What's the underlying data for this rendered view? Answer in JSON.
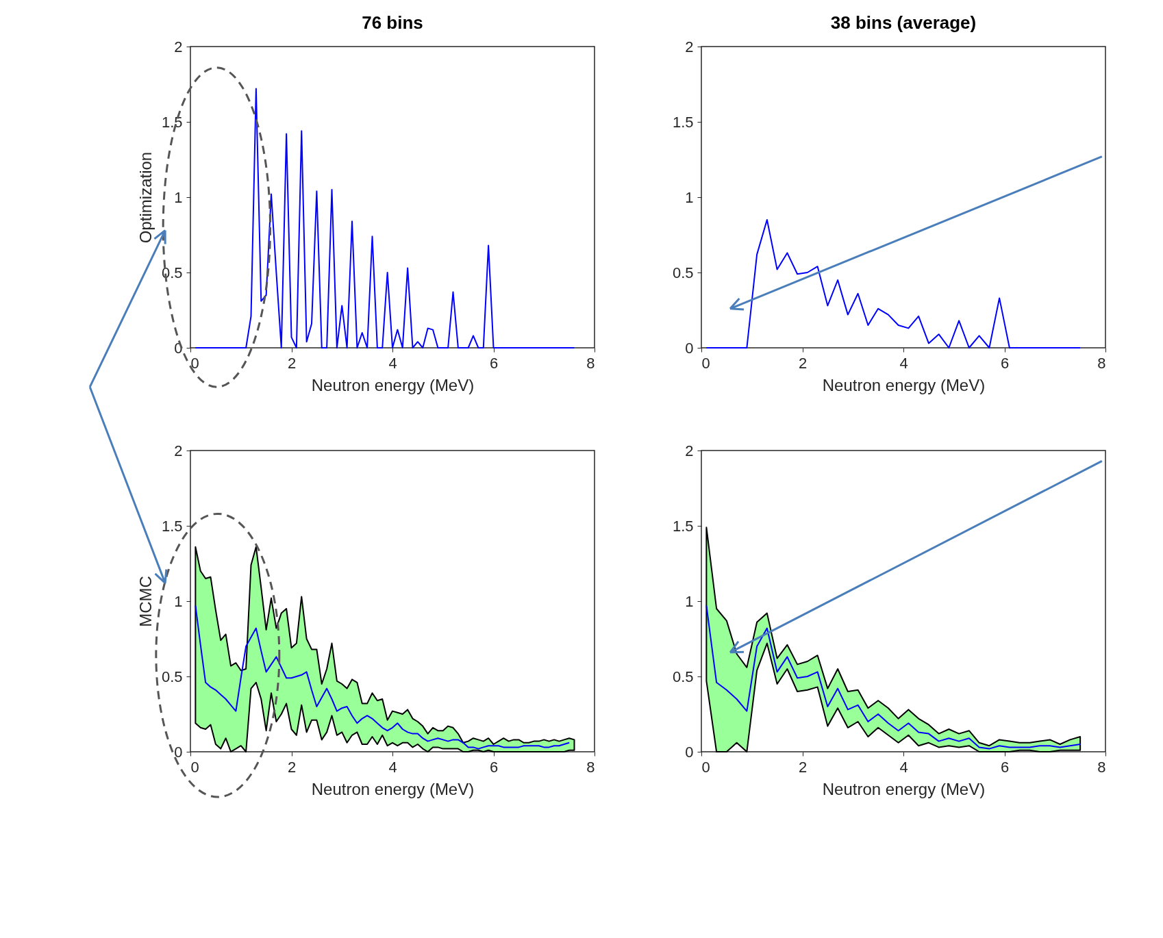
{
  "chart_data": [
    {
      "type": "line",
      "title": "76 bins",
      "xlabel": "Neutron energy (MeV)",
      "ylabel": "Optimization",
      "x": [
        0.1,
        0.2,
        0.3,
        0.4,
        0.5,
        0.6,
        0.7,
        0.8,
        0.9,
        1.0,
        1.1,
        1.2,
        1.3,
        1.4,
        1.5,
        1.6,
        1.7,
        1.8,
        1.9,
        2.0,
        2.1,
        2.2,
        2.3,
        2.4,
        2.5,
        2.6,
        2.7,
        2.8,
        2.9,
        3.0,
        3.1,
        3.2,
        3.3,
        3.4,
        3.5,
        3.6,
        3.7,
        3.8,
        3.9,
        4.0,
        4.1,
        4.2,
        4.3,
        4.4,
        4.5,
        4.6,
        4.7,
        4.8,
        4.9,
        5.0,
        5.1,
        5.2,
        5.3,
        5.4,
        5.5,
        5.6,
        5.7,
        5.8,
        5.9,
        6.0,
        6.1,
        6.2,
        6.3,
        6.4,
        6.5,
        6.6,
        6.7,
        6.8,
        6.9,
        7.0,
        7.1,
        7.2,
        7.3,
        7.4,
        7.5,
        7.6
      ],
      "series": [
        {
          "color": "#0000ff",
          "values": [
            0,
            0,
            0,
            0,
            0,
            0,
            0,
            0,
            0,
            0,
            0,
            0.21,
            1.72,
            0.31,
            0.35,
            1.02,
            0.5,
            0,
            1.42,
            0.07,
            0,
            1.44,
            0.04,
            0.16,
            1.04,
            0,
            0,
            1.05,
            0,
            0.28,
            0,
            0.84,
            0,
            0.1,
            0,
            0.74,
            0,
            0,
            0.5,
            0,
            0.12,
            0,
            0.53,
            0,
            0.04,
            0,
            0.13,
            0.12,
            0,
            0,
            0,
            0.37,
            0,
            0,
            0,
            0.08,
            0,
            0,
            0.68,
            0,
            0,
            0,
            0,
            0,
            0,
            0,
            0,
            0,
            0,
            0,
            0,
            0,
            0,
            0,
            0,
            0
          ]
        }
      ],
      "xlim": [
        0,
        8
      ],
      "xticks": [
        0,
        2,
        4,
        6,
        8
      ],
      "ylim": [
        0,
        2
      ],
      "yticks": [
        0,
        0.5,
        1,
        1.5,
        2
      ]
    },
    {
      "type": "line",
      "title": "38 bins (average)",
      "xlabel": "Neutron energy (MeV)",
      "x": [
        0.1,
        0.3,
        0.5,
        0.7,
        0.9,
        1.1,
        1.3,
        1.5,
        1.7,
        1.9,
        2.1,
        2.3,
        2.5,
        2.7,
        2.9,
        3.1,
        3.3,
        3.5,
        3.7,
        3.9,
        4.1,
        4.3,
        4.5,
        4.7,
        4.9,
        5.1,
        5.3,
        5.5,
        5.7,
        5.9,
        6.1,
        6.3,
        6.5,
        6.7,
        6.9,
        7.1,
        7.3,
        7.5
      ],
      "series": [
        {
          "color": "#0000ff",
          "values": [
            0,
            0,
            0,
            0,
            0,
            0.62,
            0.85,
            0.52,
            0.63,
            0.49,
            0.5,
            0.54,
            0.28,
            0.45,
            0.22,
            0.36,
            0.15,
            0.26,
            0.22,
            0.15,
            0.13,
            0.21,
            0.03,
            0.09,
            0,
            0.18,
            0,
            0.08,
            0,
            0.33,
            0,
            0,
            0,
            0,
            0,
            0,
            0,
            0
          ]
        }
      ],
      "xlim": [
        0,
        8
      ],
      "xticks": [
        0,
        2,
        4,
        6,
        8
      ],
      "ylim": [
        0,
        2
      ],
      "yticks": [
        0,
        0.5,
        1,
        1.5,
        2
      ]
    },
    {
      "type": "line",
      "xlabel": "Neutron energy (MeV)",
      "ylabel": "MCMC",
      "x": [
        0.1,
        0.2,
        0.3,
        0.4,
        0.5,
        0.6,
        0.7,
        0.8,
        0.9,
        1.0,
        1.1,
        1.2,
        1.3,
        1.4,
        1.5,
        1.6,
        1.7,
        1.8,
        1.9,
        2.0,
        2.1,
        2.2,
        2.3,
        2.4,
        2.5,
        2.6,
        2.7,
        2.8,
        2.9,
        3.0,
        3.1,
        3.2,
        3.3,
        3.4,
        3.5,
        3.6,
        3.7,
        3.8,
        3.9,
        4.0,
        4.1,
        4.2,
        4.3,
        4.4,
        4.5,
        4.6,
        4.7,
        4.8,
        4.9,
        5.0,
        5.1,
        5.2,
        5.3,
        5.4,
        5.5,
        5.6,
        5.7,
        5.8,
        5.9,
        6.0,
        6.1,
        6.2,
        6.3,
        6.4,
        6.5,
        6.6,
        6.7,
        6.8,
        6.9,
        7.0,
        7.1,
        7.2,
        7.3,
        7.4,
        7.5,
        7.6
      ],
      "series": [
        {
          "color": "#0000ff",
          "values": [
            0.97,
            0.71,
            0.46,
            0.43,
            0.41,
            0.38,
            0.35,
            0.31,
            0.27,
            0.49,
            0.7,
            0.76,
            0.82,
            0.67,
            0.53,
            0.58,
            0.63,
            0.56,
            0.49,
            0.49,
            0.5,
            0.51,
            0.53,
            0.41,
            0.3,
            0.36,
            0.42,
            0.35,
            0.27,
            0.29,
            0.3,
            0.24,
            0.19,
            0.22,
            0.24,
            0.22,
            0.19,
            0.16,
            0.14,
            0.16,
            0.19,
            0.15,
            0.13,
            0.12,
            0.12,
            0.09,
            0.07,
            0.08,
            0.09,
            0.08,
            0.07,
            0.08,
            0.08,
            0.06,
            0.03,
            0.03,
            0.02,
            0.03,
            0.04,
            0.04,
            0.04,
            0.03,
            0.03,
            0.03,
            0.03,
            0.04,
            0.04,
            0.04,
            0.04,
            0.03,
            0.03,
            0.04,
            0.04,
            0.05,
            0.06,
            null
          ],
          "upper": [
            1.36,
            1.2,
            1.15,
            1.16,
            0.94,
            0.74,
            0.78,
            0.57,
            0.59,
            0.54,
            0.55,
            1.24,
            1.36,
            1.09,
            0.81,
            1.02,
            0.82,
            0.92,
            0.95,
            0.69,
            0.72,
            1.03,
            0.75,
            0.68,
            0.68,
            0.45,
            0.55,
            0.72,
            0.47,
            0.45,
            0.42,
            0.48,
            0.46,
            0.32,
            0.32,
            0.39,
            0.34,
            0.35,
            0.21,
            0.27,
            0.26,
            0.25,
            0.28,
            0.22,
            0.2,
            0.17,
            0.12,
            0.16,
            0.14,
            0.14,
            0.17,
            0.16,
            0.12,
            0.06,
            0.07,
            0.09,
            0.08,
            0.07,
            0.09,
            0.05,
            0.07,
            0.09,
            0.07,
            0.08,
            0.08,
            0.06,
            0.06,
            0.07,
            0.07,
            0.08,
            0.07,
            0.08,
            0.07,
            0.08,
            0.09,
            0.08
          ],
          "lower": [
            0.19,
            0.16,
            0.15,
            0.18,
            0.05,
            0.02,
            0.09,
            0,
            0.02,
            0.04,
            0,
            0.42,
            0.46,
            0.35,
            0.14,
            0.39,
            0.2,
            0.25,
            0.32,
            0.15,
            0.11,
            0.31,
            0.13,
            0.21,
            0.21,
            0.08,
            0.13,
            0.24,
            0.11,
            0.13,
            0.06,
            0.11,
            0.13,
            0.05,
            0.05,
            0.1,
            0.05,
            0.11,
            0.04,
            0.06,
            0.04,
            0.06,
            0.06,
            0.03,
            0.05,
            0.02,
            0,
            0.03,
            0.03,
            0.02,
            0.02,
            0.02,
            0.02,
            0,
            0,
            0.01,
            0.01,
            0,
            0.01,
            0,
            0,
            0,
            0,
            0,
            0,
            0,
            0,
            0,
            0,
            0,
            0,
            0,
            0,
            0,
            0.01,
            0.01
          ]
        }
      ],
      "xlim": [
        0,
        8
      ],
      "xticks": [
        0,
        2,
        4,
        6,
        8
      ],
      "ylim": [
        0,
        2
      ],
      "yticks": [
        0,
        0.5,
        1,
        1.5,
        2
      ]
    },
    {
      "type": "line",
      "xlabel": "Neutron energy (MeV)",
      "x": [
        0.1,
        0.3,
        0.5,
        0.7,
        0.9,
        1.1,
        1.3,
        1.5,
        1.7,
        1.9,
        2.1,
        2.3,
        2.5,
        2.7,
        2.9,
        3.1,
        3.3,
        3.5,
        3.7,
        3.9,
        4.1,
        4.3,
        4.5,
        4.7,
        4.9,
        5.1,
        5.3,
        5.5,
        5.7,
        5.9,
        6.1,
        6.3,
        6.5,
        6.7,
        6.9,
        7.1,
        7.3,
        7.5
      ],
      "series": [
        {
          "color": "#0000ff",
          "values": [
            0.97,
            0.46,
            0.41,
            0.35,
            0.27,
            0.7,
            0.82,
            0.53,
            0.63,
            0.49,
            0.5,
            0.53,
            0.3,
            0.42,
            0.28,
            0.31,
            0.2,
            0.25,
            0.19,
            0.14,
            0.19,
            0.13,
            0.12,
            0.07,
            0.09,
            0.07,
            0.09,
            0.03,
            0.02,
            0.04,
            0.03,
            0.03,
            0.03,
            0.04,
            0.04,
            0.03,
            0.04,
            0.05
          ],
          "upper": [
            1.49,
            0.95,
            0.87,
            0.65,
            0.56,
            0.86,
            0.92,
            0.62,
            0.71,
            0.58,
            0.6,
            0.64,
            0.42,
            0.55,
            0.4,
            0.41,
            0.29,
            0.34,
            0.29,
            0.22,
            0.28,
            0.22,
            0.18,
            0.12,
            0.15,
            0.12,
            0.14,
            0.06,
            0.04,
            0.08,
            0.07,
            0.06,
            0.06,
            0.07,
            0.08,
            0.05,
            0.08,
            0.1
          ],
          "lower": [
            0.47,
            0,
            0,
            0.06,
            0,
            0.54,
            0.72,
            0.45,
            0.55,
            0.4,
            0.41,
            0.43,
            0.17,
            0.29,
            0.16,
            0.2,
            0.1,
            0.16,
            0.11,
            0.06,
            0.11,
            0.04,
            0.06,
            0.03,
            0.04,
            0.03,
            0.04,
            0,
            0,
            0,
            0,
            0.01,
            0.01,
            0,
            0,
            0.01,
            0.01,
            0.01
          ]
        }
      ],
      "xlim": [
        0,
        8
      ],
      "xticks": [
        0,
        2,
        4,
        6,
        8
      ],
      "ylim": [
        0,
        2
      ],
      "yticks": [
        0,
        0.5,
        1,
        1.5,
        2
      ]
    }
  ]
}
